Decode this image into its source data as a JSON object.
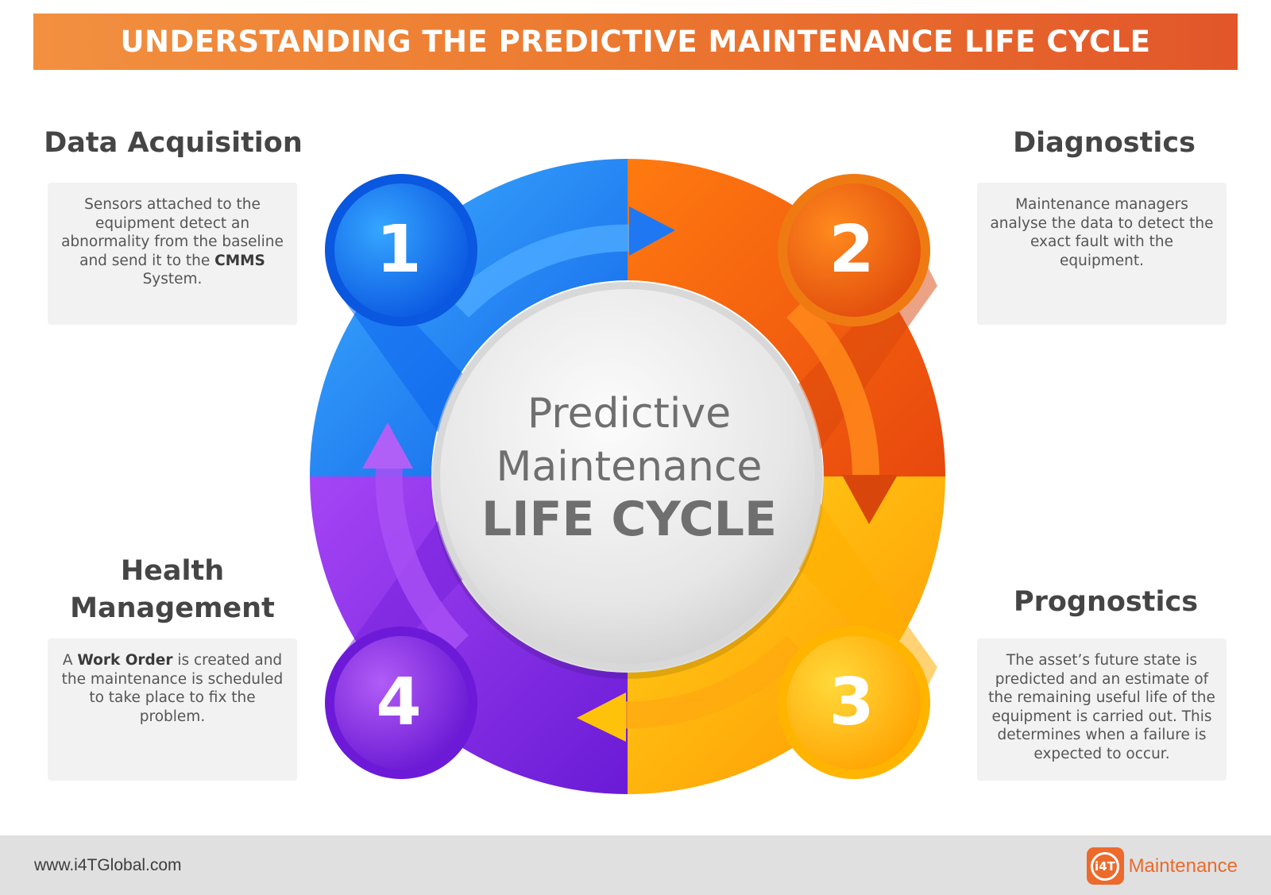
{
  "banner": {
    "title": "UNDERSTANDING THE PREDICTIVE MAINTENANCE LIFE CYCLE"
  },
  "stages": [
    {
      "number": "1",
      "heading": "Data Acquisition",
      "description_segments": [
        {
          "text": "Sensors attached to the equipment detect an abnormality from the baseline and send it to the ",
          "bold": false
        },
        {
          "text": "CMMS",
          "bold": true
        },
        {
          "text": " System.",
          "bold": false
        }
      ]
    },
    {
      "number": "2",
      "heading": "Diagnostics",
      "description_segments": [
        {
          "text": "Maintenance managers analyse the data to detect the exact fault with the equipment.",
          "bold": false
        }
      ]
    },
    {
      "number": "3",
      "heading": "Prognostics",
      "description_segments": [
        {
          "text": "The asset’s future state is predicted and an estimate of the remaining useful life of the equipment is carried out. This determines when a failure is expected to occur.",
          "bold": false
        }
      ]
    },
    {
      "number": "4",
      "heading": "Health Management",
      "description_segments": [
        {
          "text": "A ",
          "bold": false
        },
        {
          "text": "Work Order",
          "bold": true
        },
        {
          "text": " is created and the maintenance is scheduled to take place to fix the problem.",
          "bold": false
        }
      ]
    }
  ],
  "center": {
    "line1": "Predictive",
    "line2": "Maintenance",
    "line3": "LIFE CYCLE"
  },
  "colors": {
    "banner": "#ec7b30",
    "stage1": "#1a7cf0",
    "stage2": "#f05a14",
    "stage3": "#ffb300",
    "stage4": "#8a2be2",
    "brand": "#ec6a2c"
  },
  "footer": {
    "url": "www.i4TGlobal.com",
    "brand_mark": "i4T",
    "brand_name": "Maintenance"
  },
  "icons": {
    "brand": "i4t-logo-icon",
    "arrows": "cycle-arrow-icon"
  }
}
